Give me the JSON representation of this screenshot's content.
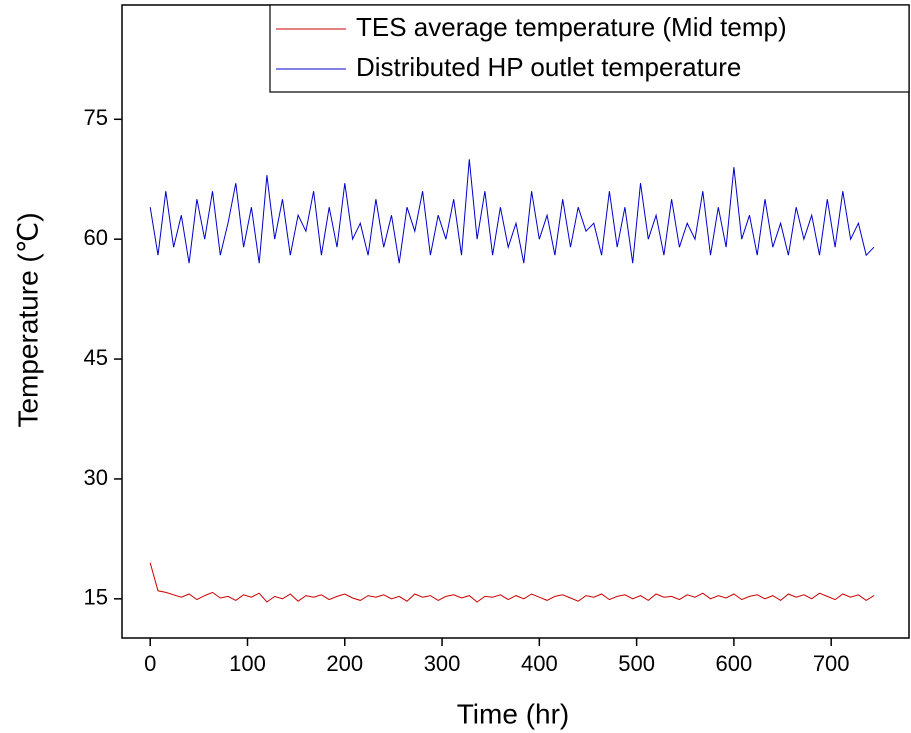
{
  "chart_data": {
    "type": "line",
    "x_label": "Time (hr)",
    "y_label": "Temperature (℃)",
    "x": [
      0,
      8,
      16,
      24,
      32,
      40,
      48,
      56,
      64,
      72,
      80,
      88,
      96,
      104,
      112,
      120,
      128,
      136,
      144,
      152,
      160,
      168,
      176,
      184,
      192,
      200,
      208,
      216,
      224,
      232,
      240,
      248,
      256,
      264,
      272,
      280,
      288,
      296,
      304,
      312,
      320,
      328,
      336,
      344,
      352,
      360,
      368,
      376,
      384,
      392,
      400,
      408,
      416,
      424,
      432,
      440,
      448,
      456,
      464,
      472,
      480,
      488,
      496,
      504,
      512,
      520,
      528,
      536,
      544,
      552,
      560,
      568,
      576,
      584,
      592,
      600,
      608,
      616,
      624,
      632,
      640,
      648,
      656,
      664,
      672,
      680,
      688,
      696,
      704,
      712,
      720,
      728,
      736,
      744
    ],
    "series": [
      {
        "name": "TES average temperature (Mid temp)",
        "color": "#cc0000",
        "values": [
          19.5,
          16,
          15.8,
          15.5,
          15.2,
          15.6,
          14.9,
          15.4,
          15.8,
          15.1,
          15.3,
          14.8,
          15.5,
          15.2,
          15.7,
          14.6,
          15.3,
          15.0,
          15.6,
          14.7,
          15.4,
          15.2,
          15.5,
          14.9,
          15.3,
          15.6,
          15.1,
          14.8,
          15.4,
          15.2,
          15.5,
          15.0,
          15.3,
          14.7,
          15.6,
          15.2,
          15.4,
          14.8,
          15.3,
          15.5,
          15.1,
          15.4,
          14.6,
          15.3,
          15.2,
          15.5,
          14.9,
          15.4,
          15.0,
          15.6,
          15.2,
          14.8,
          15.3,
          15.5,
          15.1,
          14.7,
          15.4,
          15.2,
          15.6,
          14.9,
          15.3,
          15.5,
          15.0,
          15.4,
          14.8,
          15.6,
          15.2,
          15.3,
          14.9,
          15.5,
          15.2,
          15.7,
          15.0,
          15.4,
          15.1,
          15.6,
          14.9,
          15.3,
          15.5,
          15.0,
          15.4,
          14.8,
          15.6,
          15.2,
          15.5,
          15.0,
          15.7,
          15.3,
          14.9,
          15.6,
          15.2,
          15.5,
          14.8,
          15.4
        ]
      },
      {
        "name": "Distributed HP outlet temperature",
        "color": "#0000cc",
        "values": [
          64,
          58,
          66,
          59,
          63,
          57,
          65,
          60,
          66,
          58,
          62,
          67,
          59,
          64,
          57,
          68,
          60,
          65,
          58,
          63,
          61,
          66,
          58,
          64,
          59,
          67,
          60,
          62,
          58,
          65,
          59,
          63,
          57,
          64,
          61,
          66,
          58,
          63,
          60,
          65,
          58,
          70,
          60,
          66,
          58,
          64,
          59,
          62,
          57,
          66,
          60,
          63,
          58,
          65,
          59,
          64,
          61,
          62,
          58,
          66,
          59,
          64,
          57,
          67,
          60,
          63,
          58,
          65,
          59,
          62,
          60,
          66,
          58,
          64,
          59,
          69,
          60,
          63,
          58,
          65,
          59,
          62,
          58,
          64,
          60,
          63,
          58,
          65,
          59,
          66,
          60,
          62,
          58,
          59
        ]
      }
    ],
    "xlim": [
      -29,
      780
    ],
    "ylim": [
      10.1,
      89.3
    ],
    "xticks": [
      0,
      100,
      200,
      300,
      400,
      500,
      600,
      700
    ],
    "yticks": [
      15,
      30,
      45,
      60,
      75
    ],
    "legend": "upper right"
  }
}
